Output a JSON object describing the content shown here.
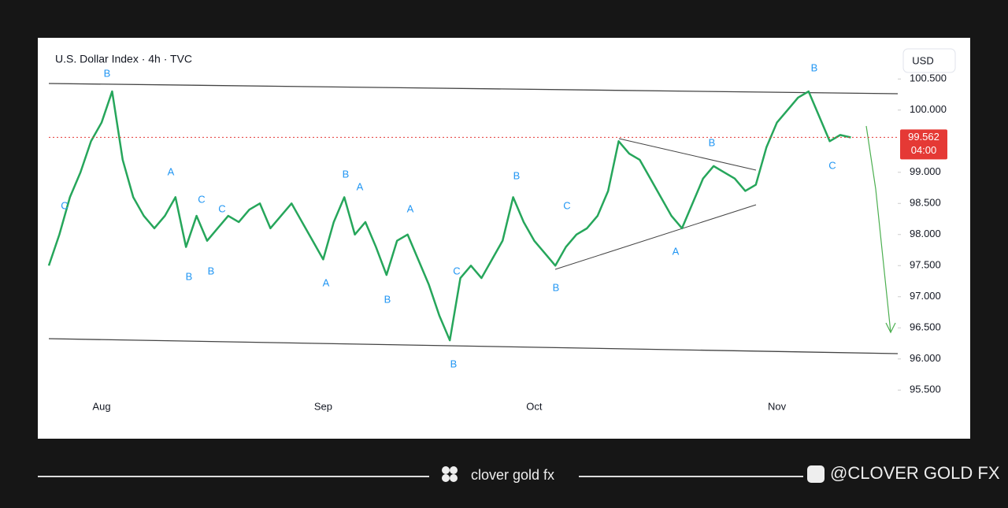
{
  "chart_data": {
    "type": "line",
    "title": "U.S. Dollar Index · 4h · TVC",
    "currency": "USD",
    "countdown": "04:00",
    "last_price": 99.562,
    "categories": [
      null,
      null,
      null,
      null,
      null,
      "Aug",
      null,
      null,
      null,
      null,
      null,
      null,
      null,
      null,
      null,
      null,
      null,
      null,
      null,
      null,
      null,
      null,
      null,
      null,
      null,
      null,
      "Sep",
      null,
      null,
      null,
      null,
      null,
      null,
      null,
      null,
      null,
      null,
      null,
      null,
      null,
      null,
      null,
      null,
      null,
      null,
      null,
      "Oct",
      null,
      null,
      null,
      null,
      null,
      null,
      null,
      null,
      null,
      null,
      null,
      null,
      null,
      null,
      null,
      null,
      null,
      null,
      null,
      null,
      null,
      null,
      "Nov",
      null,
      null,
      null,
      null,
      null,
      null,
      null
    ],
    "series": [
      {
        "color": "#26a65b",
        "values": [
          97.5,
          98.0,
          98.6,
          99.0,
          99.5,
          99.8,
          100.3,
          99.2,
          98.6,
          98.3,
          98.1,
          98.3,
          98.6,
          97.8,
          98.3,
          97.9,
          98.1,
          98.3,
          98.2,
          98.4,
          98.5,
          98.1,
          98.3,
          98.5,
          98.2,
          97.9,
          97.6,
          98.2,
          98.6,
          98.0,
          98.2,
          97.8,
          97.35,
          97.9,
          98.0,
          97.6,
          97.2,
          96.7,
          96.3,
          97.3,
          97.5,
          97.3,
          97.6,
          97.9,
          98.6,
          98.2,
          97.9,
          97.7,
          97.5,
          97.8,
          98.0,
          98.1,
          98.3,
          98.7,
          99.5,
          99.3,
          99.2,
          98.9,
          98.6,
          98.3,
          98.1,
          98.5,
          98.9,
          99.1,
          99.0,
          98.9,
          98.7,
          98.8,
          99.4,
          99.8,
          100.0,
          100.2,
          100.3,
          99.9,
          99.5,
          99.6,
          99.56
        ]
      }
    ],
    "ylim": [
      95.44,
      100.63
    ],
    "yticks": [
      {
        "value": 95.5,
        "label": "95.500"
      },
      {
        "value": 96,
        "label": "96.000"
      },
      {
        "value": 96.5,
        "label": "96.500"
      },
      {
        "value": 97,
        "label": "97.000"
      },
      {
        "value": 97.5,
        "label": "97.500"
      },
      {
        "value": 98,
        "label": "98.000"
      },
      {
        "value": 98.5,
        "label": "98.500"
      },
      {
        "value": 99,
        "label": "99.000"
      },
      {
        "value": 100,
        "label": "100.000"
      },
      {
        "value": 100.5,
        "label": "100.500"
      }
    ],
    "grid": false,
    "wave_labels": [
      "B",
      "C",
      "A",
      "C",
      "B",
      "B",
      "C",
      "B",
      "A",
      "A",
      "B",
      "A",
      "B",
      "C",
      "B",
      "C",
      "B",
      "A",
      "B",
      "B",
      "C"
    ]
  },
  "footer": {
    "brand": "clover gold fx",
    "handle": "@CLOVER GOLD FX"
  }
}
